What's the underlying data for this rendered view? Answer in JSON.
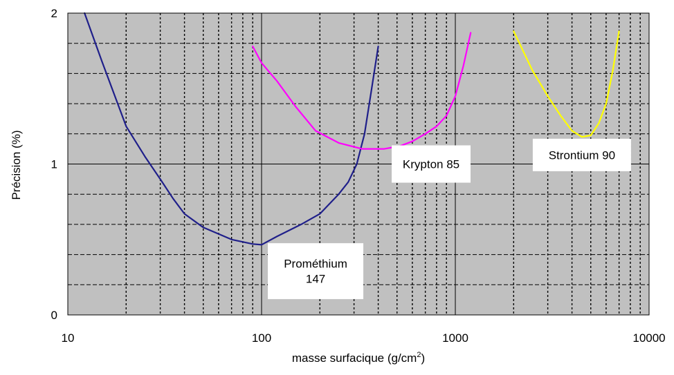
{
  "chart_data": {
    "type": "line",
    "xlabel": "masse surfacique (g/cm",
    "xlabel_sup": "2",
    "xlabel_end": ")",
    "ylabel": "Précision (%)",
    "x_scale": "log",
    "xlim": [
      10,
      10000
    ],
    "ylim": [
      0,
      2
    ],
    "x_ticks": [
      "10",
      "100",
      "1000",
      "10000"
    ],
    "y_ticks": [
      "0",
      "1",
      "2"
    ],
    "grid": true,
    "plot_background": "#c0c0c0",
    "series": [
      {
        "name": "Prométhium 147",
        "label_lines": [
          "Prométhium",
          "147"
        ],
        "color": "#1f1f8a",
        "points": [
          [
            12.2,
            2.0
          ],
          [
            15,
            1.68
          ],
          [
            20,
            1.25
          ],
          [
            25,
            1.05
          ],
          [
            30,
            0.9
          ],
          [
            35,
            0.77
          ],
          [
            40,
            0.67
          ],
          [
            50,
            0.58
          ],
          [
            70,
            0.5
          ],
          [
            90,
            0.47
          ],
          [
            100,
            0.465
          ],
          [
            120,
            0.52
          ],
          [
            160,
            0.6
          ],
          [
            200,
            0.67
          ],
          [
            250,
            0.8
          ],
          [
            280,
            0.88
          ],
          [
            310,
            1.0
          ],
          [
            340,
            1.2
          ],
          [
            370,
            1.5
          ],
          [
            400,
            1.78
          ]
        ]
      },
      {
        "name": "Krypton 85",
        "label_lines": [
          "Krypton 85"
        ],
        "color": "#ff00ff",
        "points": [
          [
            90,
            1.78
          ],
          [
            100,
            1.67
          ],
          [
            120,
            1.55
          ],
          [
            150,
            1.38
          ],
          [
            190,
            1.22
          ],
          [
            250,
            1.14
          ],
          [
            330,
            1.1
          ],
          [
            430,
            1.1
          ],
          [
            520,
            1.12
          ],
          [
            600,
            1.15
          ],
          [
            700,
            1.2
          ],
          [
            800,
            1.25
          ],
          [
            900,
            1.32
          ],
          [
            1000,
            1.45
          ],
          [
            1100,
            1.65
          ],
          [
            1200,
            1.87
          ]
        ]
      },
      {
        "name": "Strontium 90",
        "label_lines": [
          "Strontium 90"
        ],
        "color": "#ffff00",
        "points": [
          [
            2000,
            1.88
          ],
          [
            2500,
            1.62
          ],
          [
            3000,
            1.45
          ],
          [
            3500,
            1.32
          ],
          [
            4000,
            1.22
          ],
          [
            4500,
            1.18
          ],
          [
            5000,
            1.19
          ],
          [
            5500,
            1.27
          ],
          [
            6000,
            1.4
          ],
          [
            6500,
            1.62
          ],
          [
            7000,
            1.88
          ]
        ]
      }
    ]
  }
}
